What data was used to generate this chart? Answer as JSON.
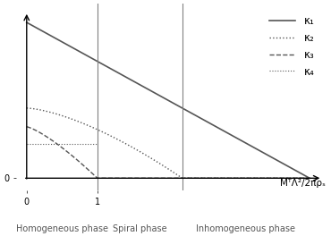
{
  "title": "",
  "xlabel": "MᵀΛ²/2πρₛ",
  "xmin": 0,
  "xmax": 4.0,
  "ymin": 0,
  "ymax": 1.0,
  "phase_boundaries": [
    1.0,
    2.2
  ],
  "phase_labels": [
    "Homogeneous phase",
    "Spiral phase",
    "Inhomogeneous phase"
  ],
  "legend_labels": [
    "κ₁",
    "κ₂",
    "κ₃",
    "κ₄"
  ],
  "line_color": "#555555",
  "background_color": "#ffffff",
  "phase_label_fontsize": 7
}
